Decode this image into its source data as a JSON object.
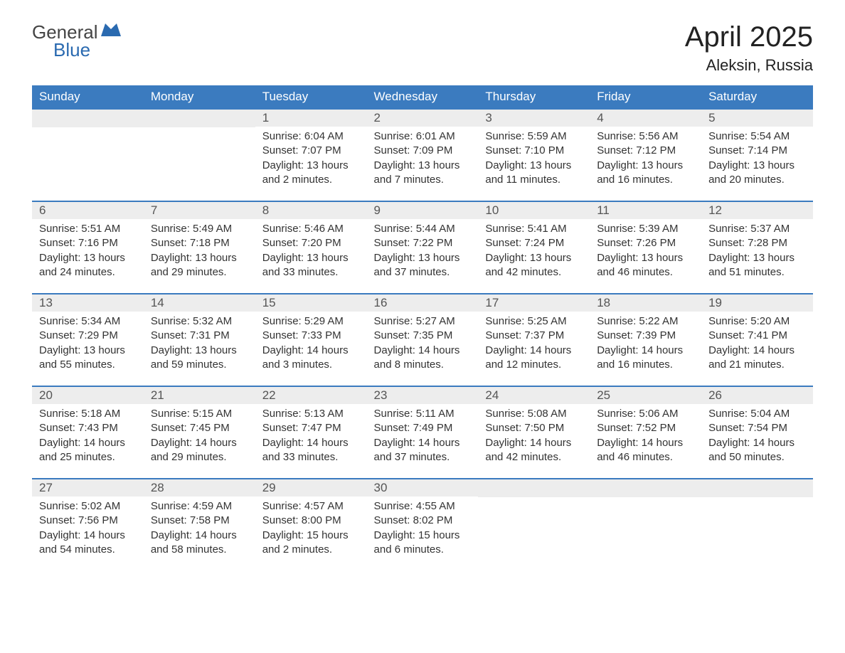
{
  "logo": {
    "line1": "General",
    "line2": "Blue"
  },
  "title": "April 2025",
  "location": "Aleksin, Russia",
  "colors": {
    "header_bg": "#3b7bbf",
    "header_text": "#ffffff",
    "daynum_bg": "#ededed",
    "daynum_text": "#555555",
    "border": "#3b7bbf",
    "body_text": "#333333"
  },
  "weekdays": [
    "Sunday",
    "Monday",
    "Tuesday",
    "Wednesday",
    "Thursday",
    "Friday",
    "Saturday"
  ],
  "weeks": [
    [
      null,
      null,
      {
        "n": "1",
        "sunrise": "Sunrise: 6:04 AM",
        "sunset": "Sunset: 7:07 PM",
        "dl1": "Daylight: 13 hours",
        "dl2": "and 2 minutes."
      },
      {
        "n": "2",
        "sunrise": "Sunrise: 6:01 AM",
        "sunset": "Sunset: 7:09 PM",
        "dl1": "Daylight: 13 hours",
        "dl2": "and 7 minutes."
      },
      {
        "n": "3",
        "sunrise": "Sunrise: 5:59 AM",
        "sunset": "Sunset: 7:10 PM",
        "dl1": "Daylight: 13 hours",
        "dl2": "and 11 minutes."
      },
      {
        "n": "4",
        "sunrise": "Sunrise: 5:56 AM",
        "sunset": "Sunset: 7:12 PM",
        "dl1": "Daylight: 13 hours",
        "dl2": "and 16 minutes."
      },
      {
        "n": "5",
        "sunrise": "Sunrise: 5:54 AM",
        "sunset": "Sunset: 7:14 PM",
        "dl1": "Daylight: 13 hours",
        "dl2": "and 20 minutes."
      }
    ],
    [
      {
        "n": "6",
        "sunrise": "Sunrise: 5:51 AM",
        "sunset": "Sunset: 7:16 PM",
        "dl1": "Daylight: 13 hours",
        "dl2": "and 24 minutes."
      },
      {
        "n": "7",
        "sunrise": "Sunrise: 5:49 AM",
        "sunset": "Sunset: 7:18 PM",
        "dl1": "Daylight: 13 hours",
        "dl2": "and 29 minutes."
      },
      {
        "n": "8",
        "sunrise": "Sunrise: 5:46 AM",
        "sunset": "Sunset: 7:20 PM",
        "dl1": "Daylight: 13 hours",
        "dl2": "and 33 minutes."
      },
      {
        "n": "9",
        "sunrise": "Sunrise: 5:44 AM",
        "sunset": "Sunset: 7:22 PM",
        "dl1": "Daylight: 13 hours",
        "dl2": "and 37 minutes."
      },
      {
        "n": "10",
        "sunrise": "Sunrise: 5:41 AM",
        "sunset": "Sunset: 7:24 PM",
        "dl1": "Daylight: 13 hours",
        "dl2": "and 42 minutes."
      },
      {
        "n": "11",
        "sunrise": "Sunrise: 5:39 AM",
        "sunset": "Sunset: 7:26 PM",
        "dl1": "Daylight: 13 hours",
        "dl2": "and 46 minutes."
      },
      {
        "n": "12",
        "sunrise": "Sunrise: 5:37 AM",
        "sunset": "Sunset: 7:28 PM",
        "dl1": "Daylight: 13 hours",
        "dl2": "and 51 minutes."
      }
    ],
    [
      {
        "n": "13",
        "sunrise": "Sunrise: 5:34 AM",
        "sunset": "Sunset: 7:29 PM",
        "dl1": "Daylight: 13 hours",
        "dl2": "and 55 minutes."
      },
      {
        "n": "14",
        "sunrise": "Sunrise: 5:32 AM",
        "sunset": "Sunset: 7:31 PM",
        "dl1": "Daylight: 13 hours",
        "dl2": "and 59 minutes."
      },
      {
        "n": "15",
        "sunrise": "Sunrise: 5:29 AM",
        "sunset": "Sunset: 7:33 PM",
        "dl1": "Daylight: 14 hours",
        "dl2": "and 3 minutes."
      },
      {
        "n": "16",
        "sunrise": "Sunrise: 5:27 AM",
        "sunset": "Sunset: 7:35 PM",
        "dl1": "Daylight: 14 hours",
        "dl2": "and 8 minutes."
      },
      {
        "n": "17",
        "sunrise": "Sunrise: 5:25 AM",
        "sunset": "Sunset: 7:37 PM",
        "dl1": "Daylight: 14 hours",
        "dl2": "and 12 minutes."
      },
      {
        "n": "18",
        "sunrise": "Sunrise: 5:22 AM",
        "sunset": "Sunset: 7:39 PM",
        "dl1": "Daylight: 14 hours",
        "dl2": "and 16 minutes."
      },
      {
        "n": "19",
        "sunrise": "Sunrise: 5:20 AM",
        "sunset": "Sunset: 7:41 PM",
        "dl1": "Daylight: 14 hours",
        "dl2": "and 21 minutes."
      }
    ],
    [
      {
        "n": "20",
        "sunrise": "Sunrise: 5:18 AM",
        "sunset": "Sunset: 7:43 PM",
        "dl1": "Daylight: 14 hours",
        "dl2": "and 25 minutes."
      },
      {
        "n": "21",
        "sunrise": "Sunrise: 5:15 AM",
        "sunset": "Sunset: 7:45 PM",
        "dl1": "Daylight: 14 hours",
        "dl2": "and 29 minutes."
      },
      {
        "n": "22",
        "sunrise": "Sunrise: 5:13 AM",
        "sunset": "Sunset: 7:47 PM",
        "dl1": "Daylight: 14 hours",
        "dl2": "and 33 minutes."
      },
      {
        "n": "23",
        "sunrise": "Sunrise: 5:11 AM",
        "sunset": "Sunset: 7:49 PM",
        "dl1": "Daylight: 14 hours",
        "dl2": "and 37 minutes."
      },
      {
        "n": "24",
        "sunrise": "Sunrise: 5:08 AM",
        "sunset": "Sunset: 7:50 PM",
        "dl1": "Daylight: 14 hours",
        "dl2": "and 42 minutes."
      },
      {
        "n": "25",
        "sunrise": "Sunrise: 5:06 AM",
        "sunset": "Sunset: 7:52 PM",
        "dl1": "Daylight: 14 hours",
        "dl2": "and 46 minutes."
      },
      {
        "n": "26",
        "sunrise": "Sunrise: 5:04 AM",
        "sunset": "Sunset: 7:54 PM",
        "dl1": "Daylight: 14 hours",
        "dl2": "and 50 minutes."
      }
    ],
    [
      {
        "n": "27",
        "sunrise": "Sunrise: 5:02 AM",
        "sunset": "Sunset: 7:56 PM",
        "dl1": "Daylight: 14 hours",
        "dl2": "and 54 minutes."
      },
      {
        "n": "28",
        "sunrise": "Sunrise: 4:59 AM",
        "sunset": "Sunset: 7:58 PM",
        "dl1": "Daylight: 14 hours",
        "dl2": "and 58 minutes."
      },
      {
        "n": "29",
        "sunrise": "Sunrise: 4:57 AM",
        "sunset": "Sunset: 8:00 PM",
        "dl1": "Daylight: 15 hours",
        "dl2": "and 2 minutes."
      },
      {
        "n": "30",
        "sunrise": "Sunrise: 4:55 AM",
        "sunset": "Sunset: 8:02 PM",
        "dl1": "Daylight: 15 hours",
        "dl2": "and 6 minutes."
      },
      null,
      null,
      null
    ]
  ]
}
